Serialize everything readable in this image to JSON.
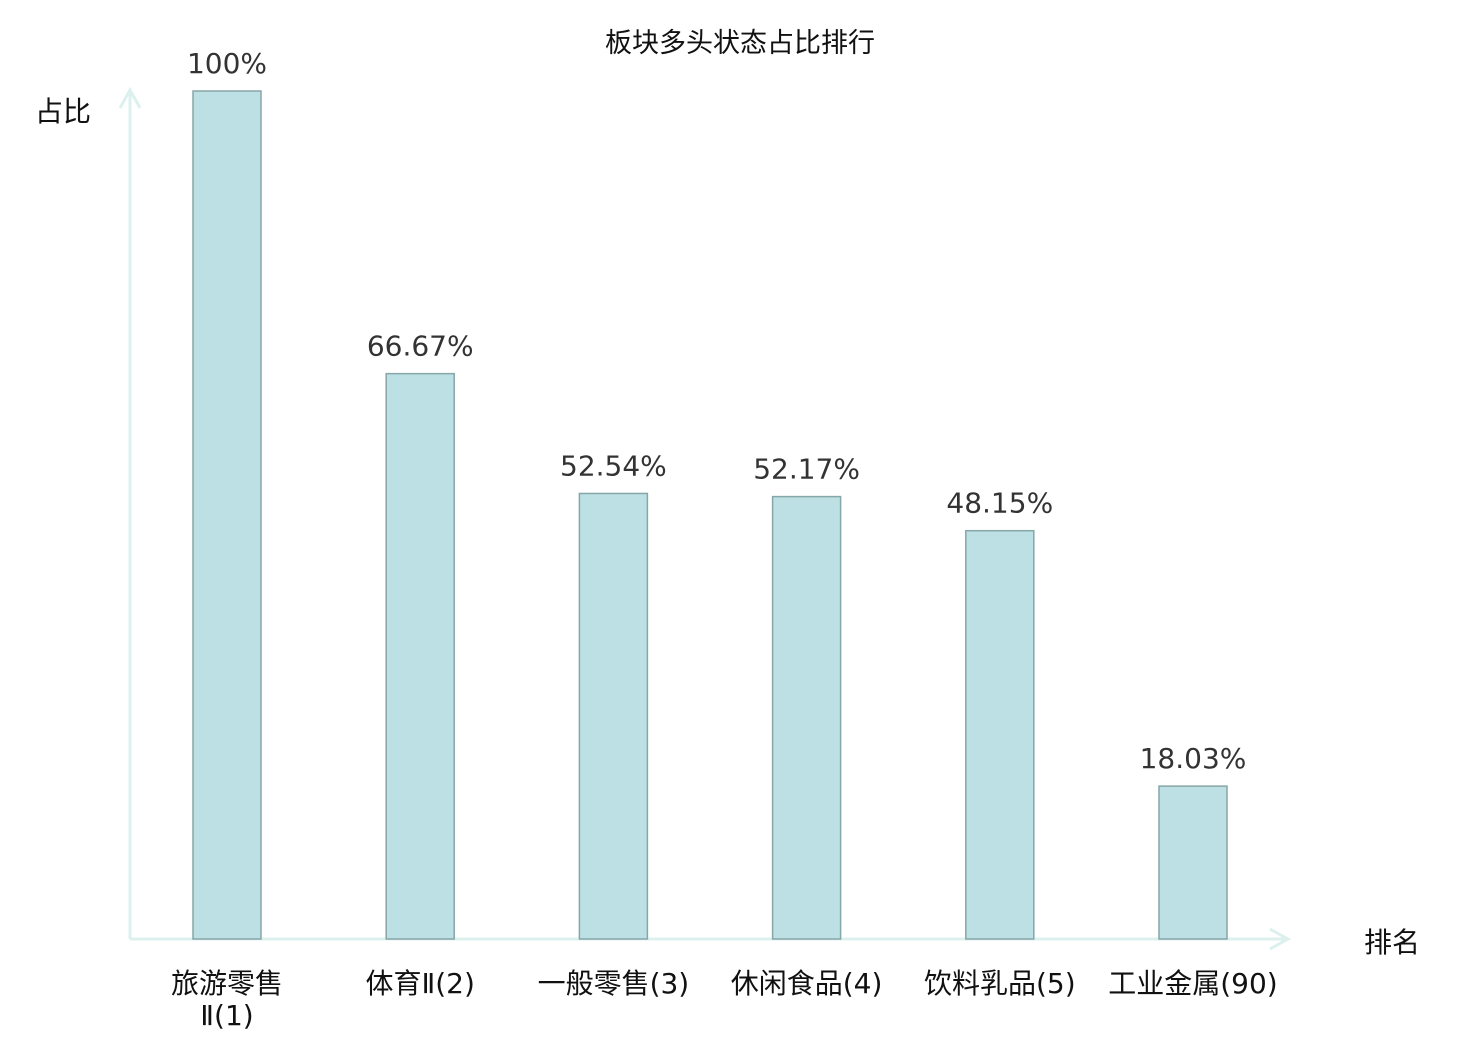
{
  "chart_data": {
    "type": "bar",
    "title": "板块多头状态占比排行",
    "xlabel": "排名",
    "ylabel": "占比",
    "categories": [
      "旅游零售Ⅱ(1)",
      "体育Ⅱ(2)",
      "一般零售(3)",
      "休闲食品(4)",
      "饮料乳品(5)",
      "工业金属(90)"
    ],
    "category_lines": [
      [
        "旅游零售",
        "Ⅱ(1)"
      ],
      [
        "体育Ⅱ(2)"
      ],
      [
        "一般零售(3)"
      ],
      [
        "休闲食品(4)"
      ],
      [
        "饮料乳品(5)"
      ],
      [
        "工业金属(90)"
      ]
    ],
    "values": [
      100,
      66.67,
      52.54,
      52.17,
      48.15,
      18.03
    ],
    "value_labels": [
      "100%",
      "66.67%",
      "52.54%",
      "52.17%",
      "48.15%",
      "18.03%"
    ],
    "highlight_index": 5,
    "ylim": [
      0,
      100
    ],
    "grid": false,
    "colors": {
      "bar_fill": "#bce0e3",
      "bar_stroke": "#86a6a8",
      "axis": "#dcf1ee",
      "highlight_label": "#e8161b",
      "label": "#111111",
      "value_label": "#333333"
    }
  }
}
